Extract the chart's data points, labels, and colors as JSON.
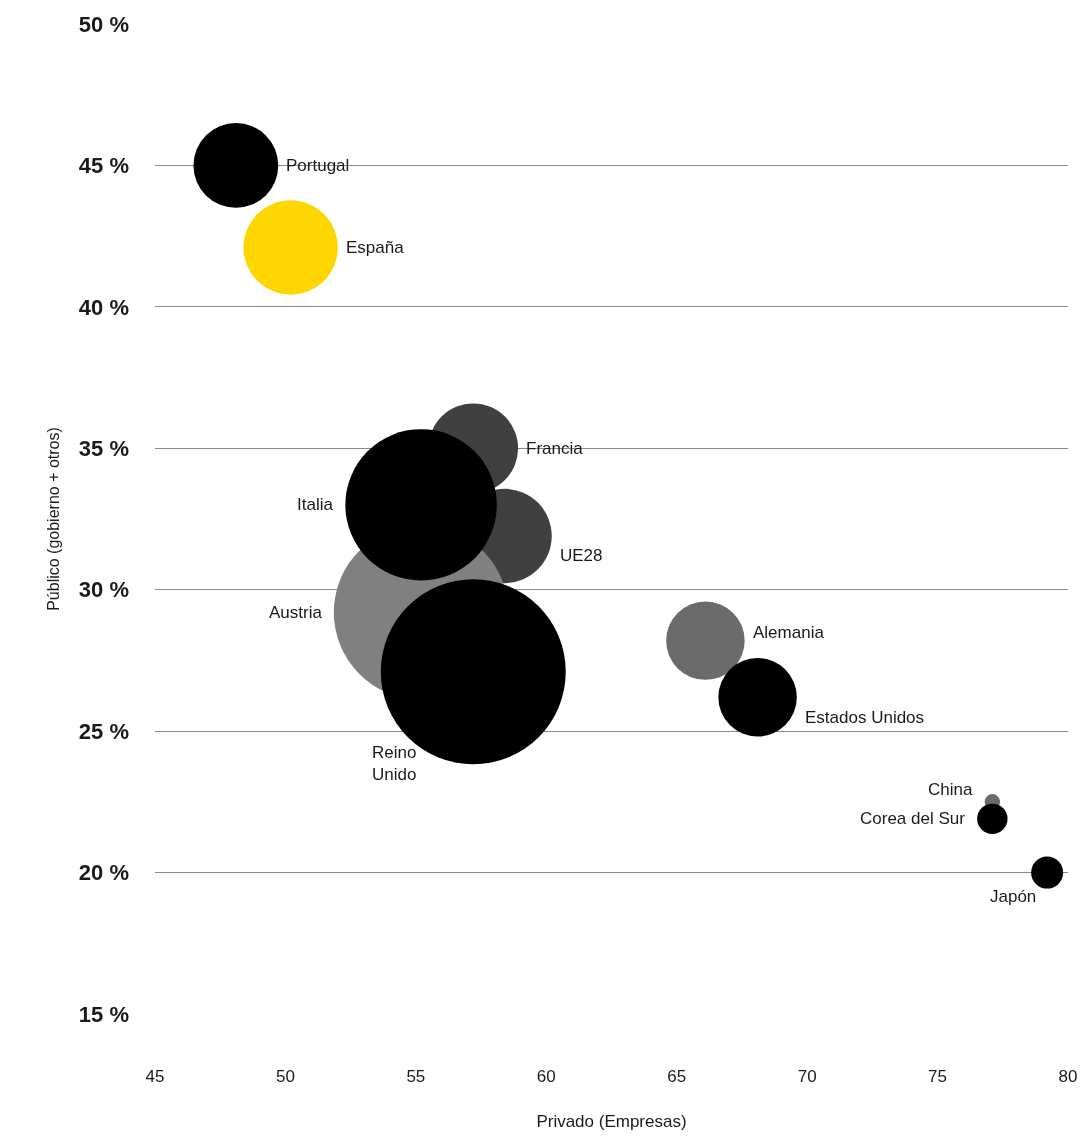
{
  "chart_data": {
    "type": "bubble",
    "xlabel": "Privado (Empresas)",
    "ylabel": "Público (gobierno + otros)",
    "series": [
      {
        "name": "Portugal",
        "color": "#000000",
        "x": [
          48.1
        ],
        "values": [
          45.0
        ],
        "sizes": [
          0.21
        ]
      },
      {
        "name": "España",
        "color": "#ffd700",
        "x": [
          50.2
        ],
        "values": [
          42.1
        ],
        "sizes": [
          0.26
        ]
      },
      {
        "name": "Francia",
        "color": "#404040",
        "x": [
          57.2
        ],
        "values": [
          35.0
        ],
        "sizes": [
          0.235
        ]
      },
      {
        "name": "UE28",
        "color": "#404040",
        "x": [
          58.4
        ],
        "values": [
          31.9
        ],
        "sizes": [
          0.26
        ]
      },
      {
        "name": "Austria",
        "color": "#808080",
        "x": [
          55.2
        ],
        "values": [
          29.2
        ],
        "sizes": [
          0.89
        ]
      },
      {
        "name": "Italia",
        "color": "#000000",
        "x": [
          55.2
        ],
        "values": [
          33.0
        ],
        "sizes": [
          0.67
        ]
      },
      {
        "name": "Reino\nUnido",
        "color": "#000000",
        "x": [
          57.2
        ],
        "values": [
          27.1
        ],
        "sizes": [
          1
        ]
      },
      {
        "name": "Alemania",
        "color": "#6b6b6b",
        "x": [
          66.1
        ],
        "values": [
          28.2
        ],
        "sizes": [
          0.18
        ]
      },
      {
        "name": "Estados Unidos",
        "color": "#000000",
        "x": [
          68.1
        ],
        "values": [
          26.2
        ],
        "sizes": [
          0.18
        ]
      },
      {
        "name": "China",
        "color": "#6b6b6b",
        "x": [
          77.1
        ],
        "values": [
          22.5
        ],
        "sizes": [
          0.007
        ]
      },
      {
        "name": "Corea del Sur",
        "color": "#000000",
        "x": [
          77.1
        ],
        "values": [
          21.9
        ],
        "sizes": [
          0.027
        ]
      },
      {
        "name": "Japón",
        "color": "#000000",
        "x": [
          79.2
        ],
        "values": [
          20.0
        ],
        "sizes": [
          0.03
        ]
      }
    ],
    "xlim": [
      45,
      80
    ],
    "xticks": [
      45,
      50,
      55,
      60,
      65,
      70,
      75,
      80
    ],
    "ylim": [
      15,
      50
    ],
    "yticks": [
      {
        "value": 15,
        "label": "15 %"
      },
      {
        "value": 20,
        "label": "20 %"
      },
      {
        "value": 25,
        "label": "25 %"
      },
      {
        "value": 30,
        "label": "30 %"
      },
      {
        "value": 35,
        "label": "35 %"
      },
      {
        "value": 40,
        "label": "40 %"
      },
      {
        "value": 45,
        "label": "45 %"
      },
      {
        "value": 50,
        "label": "50 %"
      }
    ],
    "grid": "y",
    "legend": false
  }
}
